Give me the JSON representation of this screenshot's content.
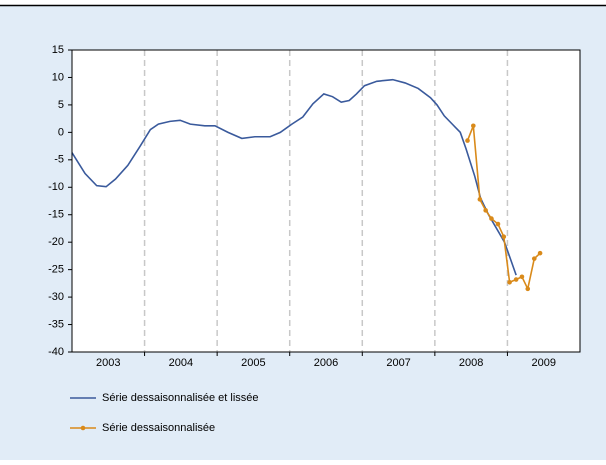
{
  "chart_data": {
    "type": "line",
    "categories": [
      "2003",
      "2004",
      "2005",
      "2006",
      "2007",
      "2008",
      "2009"
    ],
    "xlim": [
      2003,
      2010
    ],
    "ylim": [
      -40,
      15
    ],
    "yticks": [
      -40,
      -35,
      -30,
      -25,
      -20,
      -15,
      -10,
      -5,
      0,
      5,
      10,
      15
    ],
    "series": [
      {
        "name": "Série dessaisonnalisée et lissée",
        "color": "#3a5a9c",
        "marker": false,
        "x": [
          2003.0,
          2003.18,
          2003.34,
          2003.47,
          2003.6,
          2003.77,
          2003.94,
          2004.08,
          2004.19,
          2004.35,
          2004.49,
          2004.63,
          2004.83,
          2004.97,
          2005.15,
          2005.34,
          2005.52,
          2005.73,
          2005.87,
          2006.03,
          2006.18,
          2006.32,
          2006.47,
          2006.59,
          2006.71,
          2006.82,
          2006.92,
          2007.03,
          2007.2,
          2007.42,
          2007.59,
          2007.77,
          2007.94,
          2008.03,
          2008.13,
          2008.24,
          2008.35,
          2008.43,
          2008.55,
          2008.63,
          2008.74,
          2008.85,
          2008.96,
          2009.04,
          2009.12
        ],
        "values": [
          -3.7,
          -7.5,
          -9.7,
          -9.9,
          -8.5,
          -6,
          -2.5,
          0.5,
          1.5,
          2,
          2.2,
          1.5,
          1.2,
          1.2,
          0,
          -1.1,
          -0.8,
          -0.8,
          0,
          1.5,
          2.8,
          5.2,
          7,
          6.5,
          5.5,
          5.8,
          7,
          8.5,
          9.3,
          9.6,
          9,
          8,
          6.3,
          5,
          3,
          1.5,
          0,
          -3,
          -8,
          -12,
          -15,
          -17.5,
          -20,
          -23,
          -26
        ]
      },
      {
        "name": "Série dessaisonnalisée",
        "color": "#d98a1a",
        "marker": true,
        "x": [
          2008.45,
          2008.53,
          2008.62,
          2008.7,
          2008.78,
          2008.87,
          2008.95,
          2009.03,
          2009.12,
          2009.2,
          2009.28,
          2009.37,
          2009.45
        ],
        "values": [
          -1.5,
          1.2,
          -12.2,
          -14.2,
          -15.7,
          -16.7,
          -19,
          -27.3,
          -26.8,
          -26.3,
          -28.5,
          -23,
          -22
        ]
      }
    ]
  }
}
